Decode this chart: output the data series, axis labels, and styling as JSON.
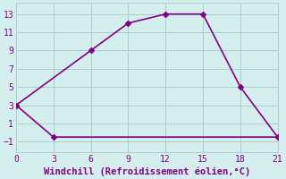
{
  "line1_x": [
    0,
    6,
    9,
    12,
    15,
    18,
    21
  ],
  "line1_y": [
    3,
    9,
    12,
    13,
    13,
    5,
    -0.5
  ],
  "line2_x": [
    0,
    3,
    21
  ],
  "line2_y": [
    3,
    -0.5,
    -0.5
  ],
  "color": "#800080",
  "bg_color": "#d4eeee",
  "grid_color": "#aacccc",
  "xlabel": "Windchill (Refroidissement éolien,°C)",
  "xlim": [
    0,
    21
  ],
  "ylim": [
    -2.2,
    14.2
  ],
  "xticks": [
    0,
    3,
    6,
    9,
    12,
    15,
    18,
    21
  ],
  "yticks": [
    -1,
    1,
    3,
    5,
    7,
    9,
    11,
    13
  ],
  "marker": "D",
  "markersize": 3,
  "linewidth": 1.2,
  "xlabel_fontsize": 7.5,
  "tick_fontsize": 7
}
